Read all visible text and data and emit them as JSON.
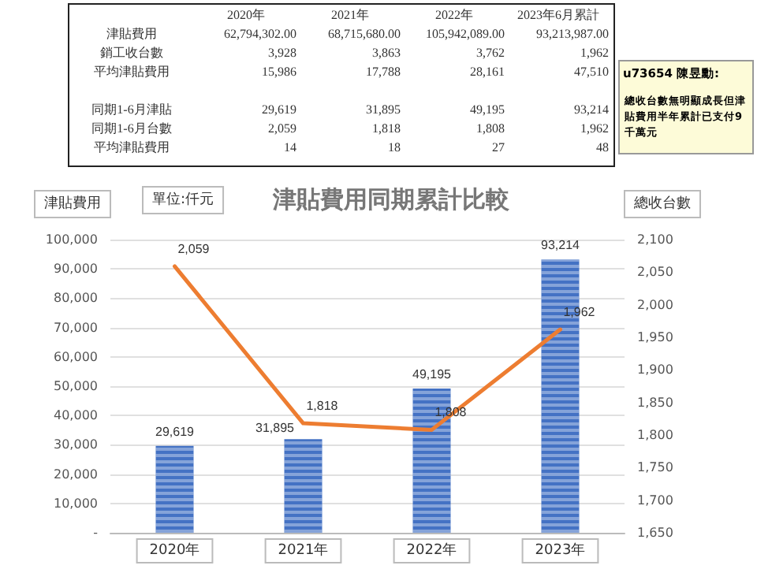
{
  "chart_data": [
    {
      "type": "other",
      "annotations": [
        "2020年",
        "2021年",
        "2022年",
        "2023年6月累計",
        "津貼費用",
        "62,794,302.00",
        "68,715,680.00",
        "105,942,089.00",
        "93,213,987.00",
        "銷工收台數",
        "3,928",
        "3,863",
        "3,762",
        "1,962",
        "平均津貼費用",
        "15,986",
        "17,788",
        "28,161",
        "47,510",
        "同期1-6月津貼",
        "29,619",
        "31,895",
        "49,195",
        "93,214",
        "同期1-6月台數",
        "2,059",
        "1,818",
        "1,808",
        "1,962",
        "平均津貼費用",
        "14",
        "18",
        "27",
        "48",
        "u73654 陳昱勳:",
        "總收台數無明顯成長但津貼費用半年累計已支付9千萬元"
      ]
    },
    {
      "type": "bar",
      "title": "津貼費用同期累計比較",
      "ylabel": "津貼費用",
      "y2label": "總收台數",
      "annotations": [
        "單位:仟元"
      ],
      "categories": [
        "2020年",
        "2021年",
        "2022年",
        "2023年"
      ],
      "series": [
        {
          "type": "bar",
          "color": "#4472c4",
          "values": [
            29619,
            31895,
            49195,
            93214
          ],
          "value_labels": [
            "29,619",
            "31,895",
            "49,195",
            "93,214"
          ]
        },
        {
          "type": "line",
          "axis": "y2",
          "color": "#ed7d31",
          "values": [
            2059,
            1818,
            1808,
            1962
          ],
          "value_labels": [
            "2,059",
            "1,818",
            "1,808",
            "1,962"
          ]
        }
      ],
      "ylim": [
        0,
        100000
      ],
      "yticks": [
        {
          "value": 0,
          "label": "-"
        },
        {
          "value": 10000,
          "label": "10,000"
        },
        {
          "value": 20000,
          "label": "20,000"
        },
        {
          "value": 30000,
          "label": "30,000"
        },
        {
          "value": 40000,
          "label": "40,000"
        },
        {
          "value": 50000,
          "label": "50,000"
        },
        {
          "value": 60000,
          "label": "60,000"
        },
        {
          "value": 70000,
          "label": "70,000"
        },
        {
          "value": 80000,
          "label": "80,000"
        },
        {
          "value": 90000,
          "label": "90,000"
        },
        {
          "value": 100000,
          "label": "100,000"
        }
      ],
      "y2lim": [
        1650,
        2100
      ],
      "y2ticks": [
        {
          "value": 1650,
          "label": "1,650"
        },
        {
          "value": 1700,
          "label": "1,700"
        },
        {
          "value": 1750,
          "label": "1,750"
        },
        {
          "value": 1800,
          "label": "1,800"
        },
        {
          "value": 1850,
          "label": "1,850"
        },
        {
          "value": 1900,
          "label": "1,900"
        },
        {
          "value": 1950,
          "label": "1,950"
        },
        {
          "value": 2000,
          "label": "2,000"
        },
        {
          "value": 2050,
          "label": "2,050"
        },
        {
          "value": 2100,
          "label": "2,100"
        }
      ],
      "grid": "y",
      "marker": "none",
      "line_style": "solid"
    }
  ]
}
